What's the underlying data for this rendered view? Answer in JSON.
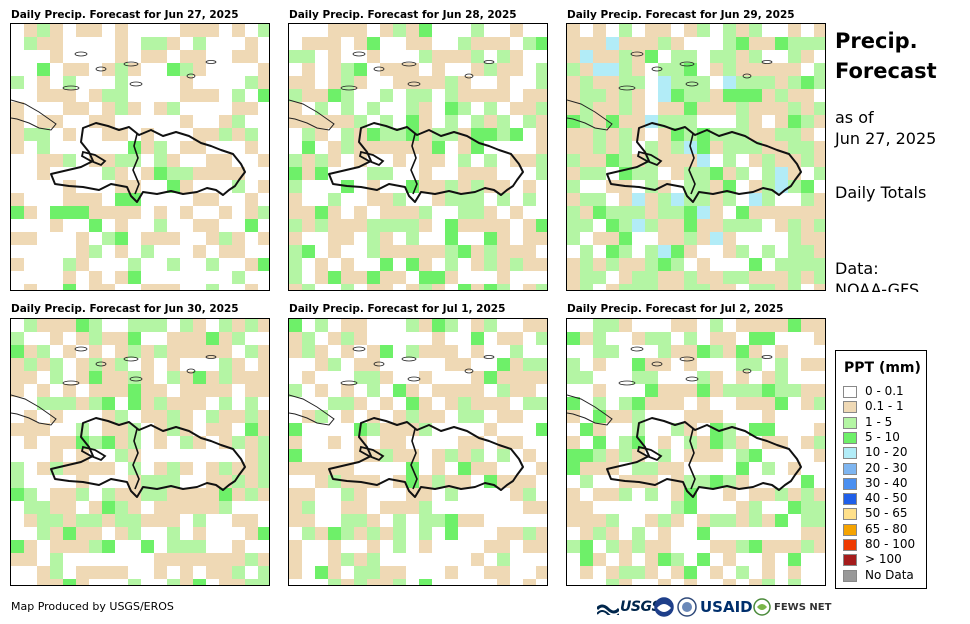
{
  "panels": [
    {
      "title": "Daily Precip. Forecast for Jun 27, 2025",
      "seed": 11,
      "wet": 0.15
    },
    {
      "title": "Daily Precip. Forecast for Jun 28, 2025",
      "seed": 23,
      "wet": 0.35
    },
    {
      "title": "Daily Precip. Forecast for Jun 29, 2025",
      "seed": 37,
      "wet": 0.55
    },
    {
      "title": "Daily Precip. Forecast for Jun 30, 2025",
      "seed": 41,
      "wet": 0.4
    },
    {
      "title": "Daily Precip. Forecast for Jul 1, 2025",
      "seed": 53,
      "wet": 0.22
    },
    {
      "title": "Daily Precip. Forecast for Jul 2, 2025",
      "seed": 67,
      "wet": 0.28
    }
  ],
  "side": {
    "title_line1": "Precip.",
    "title_line2": "Forecast",
    "asof_line1": "as of",
    "asof_line2": "Jun 27, 2025",
    "totals": "Daily Totals",
    "data_line1": "Data:",
    "data_line2": "NOAA-GFS"
  },
  "legend": {
    "title": "PPT (mm)",
    "items": [
      {
        "label": "0 - 0.1",
        "color": "#ffffff"
      },
      {
        "label": "0.1 - 1",
        "color": "#efd9b5"
      },
      {
        "label": "1 - 5",
        "color": "#b4f5a4"
      },
      {
        "label": "5 - 10",
        "color": "#6ef069"
      },
      {
        "label": "10 - 20",
        "color": "#b2ecf7"
      },
      {
        "label": "20 - 30",
        "color": "#7eb5f0"
      },
      {
        "label": "30 - 40",
        "color": "#4a8ff0"
      },
      {
        "label": "40 - 50",
        "color": "#1f5fe8"
      },
      {
        "label": "50 - 65",
        "color": "#ffe08a"
      },
      {
        "label": "65 - 80",
        "color": "#f5a300"
      },
      {
        "label": "80 - 100",
        "color": "#ee3a00"
      },
      {
        "label": "> 100",
        "color": "#a51c1c"
      },
      {
        "label": "No Data",
        "color": "#999999"
      }
    ]
  },
  "footer": {
    "credit": "Map Produced by USGS/EROS",
    "logos": [
      "USGS",
      "NOAA",
      "DOI",
      "USAID",
      "FEWS NET"
    ]
  }
}
